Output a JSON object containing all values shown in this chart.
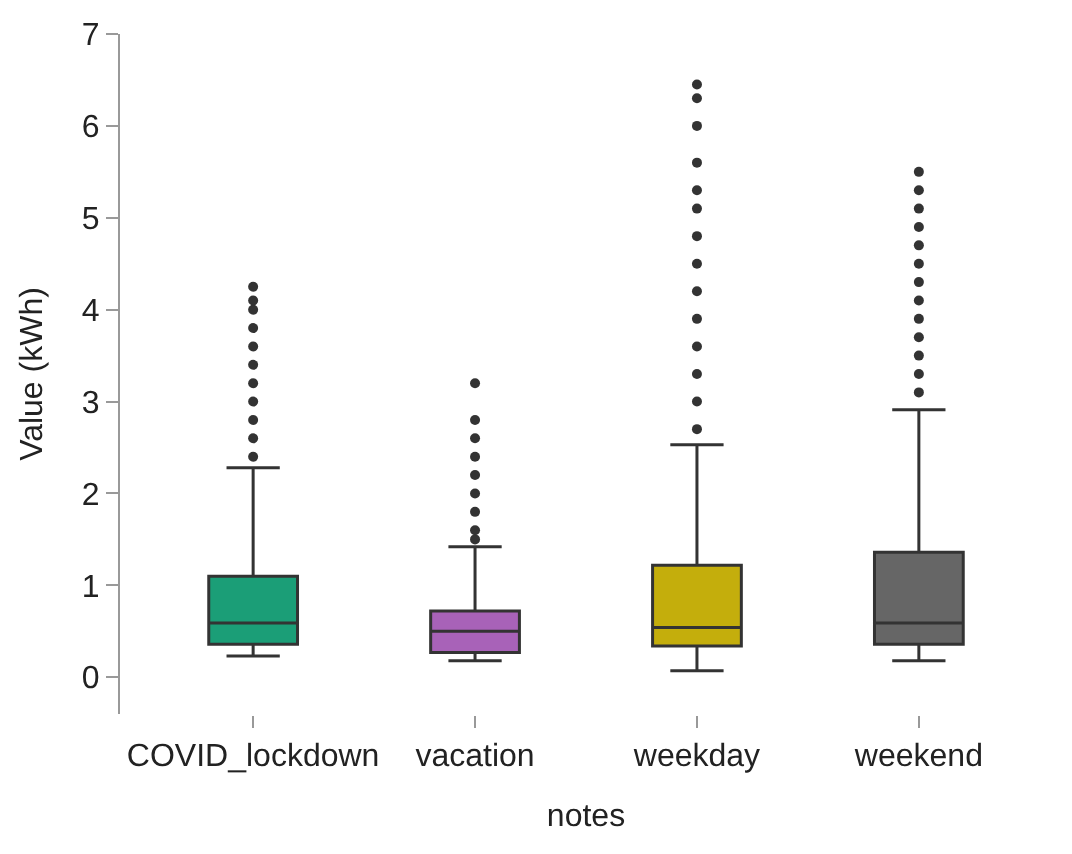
{
  "chart_data": {
    "type": "box",
    "xlabel": "notes",
    "ylabel": "Value (kWh)",
    "categories": [
      "COVID_lockdown",
      "vacation",
      "weekday",
      "weekend"
    ],
    "colors": [
      "#1b9e77",
      "#a862b8",
      "#c4ae0c",
      "#666666"
    ],
    "boxes": [
      {
        "low": 0.23,
        "q1": 0.36,
        "median": 0.59,
        "q3": 1.1,
        "high": 2.28,
        "outliers": [
          2.4,
          2.6,
          2.8,
          3.0,
          3.2,
          3.4,
          3.6,
          3.8,
          4.0,
          4.1,
          4.25
        ]
      },
      {
        "low": 0.18,
        "q1": 0.27,
        "median": 0.5,
        "q3": 0.72,
        "high": 1.42,
        "outliers": [
          1.5,
          1.6,
          1.8,
          2.0,
          2.2,
          2.4,
          2.6,
          2.8,
          3.2
        ]
      },
      {
        "low": 0.07,
        "q1": 0.34,
        "median": 0.54,
        "q3": 1.22,
        "high": 2.53,
        "outliers": [
          2.7,
          3.0,
          3.3,
          3.6,
          3.9,
          4.2,
          4.5,
          4.8,
          5.1,
          5.3,
          5.6,
          6.0,
          6.3,
          6.45
        ]
      },
      {
        "low": 0.18,
        "q1": 0.36,
        "median": 0.59,
        "q3": 1.36,
        "high": 2.91,
        "outliers": [
          3.1,
          3.3,
          3.5,
          3.7,
          3.9,
          4.1,
          4.3,
          4.5,
          4.7,
          4.9,
          5.1,
          5.3,
          5.5
        ]
      }
    ],
    "ylim": [
      -0.4,
      7
    ],
    "yticks": [
      0,
      1,
      2,
      3,
      4,
      5,
      6,
      7
    ]
  }
}
